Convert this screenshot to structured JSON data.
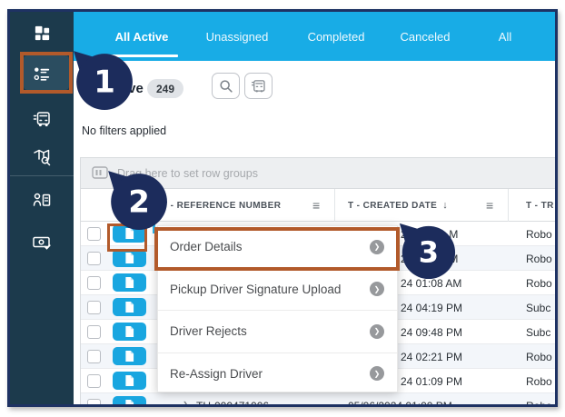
{
  "window": {
    "border_color": "#1e3263"
  },
  "sidebar": {
    "bg": "#1c3a4c",
    "items": [
      {
        "name": "dashboard",
        "selected": false
      },
      {
        "name": "orders",
        "selected": true
      },
      {
        "name": "fleet",
        "selected": false
      },
      {
        "name": "map-search",
        "selected": false
      },
      {
        "name": "drivers",
        "selected": false
      },
      {
        "name": "settlements",
        "selected": false
      }
    ]
  },
  "topbar": {
    "bg": "#18ace6",
    "tabs": [
      "All Active",
      "Unassigned",
      "Completed",
      "Canceled",
      "All"
    ],
    "active_tab": "All Active"
  },
  "toolbar": {
    "title": "All Active",
    "count": "249",
    "buttons": [
      {
        "name": "search"
      },
      {
        "name": "fleet-filter"
      }
    ]
  },
  "filters_note": "No filters applied",
  "grid": {
    "group_hint": "Drag here to set row groups",
    "columns": [
      {
        "label": "T - REFERENCE NUMBER",
        "menu_icon": "≡"
      },
      {
        "label": "T - CREATED DATE",
        "sort_icon": "↓",
        "menu_icon": "≡"
      },
      {
        "label": "T - TR"
      }
    ],
    "rows": [
      {
        "ref": "",
        "date": "24            M",
        "trip": "Robo",
        "date_covered": true,
        "expandable": false
      },
      {
        "ref": "",
        "date": "24            M",
        "trip": "Robo",
        "date_covered": true,
        "expandable": false
      },
      {
        "ref": "",
        "date": "24 01:08 AM",
        "trip": "Robo",
        "date_covered": true,
        "expandable": false
      },
      {
        "ref": "",
        "date": "24 04:19 PM",
        "trip": "Subc",
        "date_covered": true,
        "expandable": false
      },
      {
        "ref": "",
        "date": "24 09:48 PM",
        "trip": "Subc",
        "date_covered": true,
        "expandable": false
      },
      {
        "ref": "",
        "date": "24 02:21 PM",
        "trip": "Robo",
        "date_covered": true,
        "expandable": false
      },
      {
        "ref": "",
        "date": "24 01:09 PM",
        "trip": "Robo",
        "date_covered": true,
        "expandable": false
      },
      {
        "ref": "TH-000471006",
        "date": "05/06/2024 01:00 PM",
        "trip": "Robo",
        "date_covered": false,
        "expandable": true
      }
    ]
  },
  "context_menu": {
    "items": [
      {
        "label": "Order Details",
        "highlighted": true
      },
      {
        "label": "Pickup Driver Signature Upload",
        "highlighted": false
      },
      {
        "label": "Driver Rejects",
        "highlighted": false
      },
      {
        "label": "Re-Assign Driver",
        "highlighted": false
      }
    ]
  },
  "annotations": {
    "highlight_color": "#b25a2b",
    "badge_color": "#1c2c5c",
    "steps": [
      {
        "number": "1",
        "points_at": "orders-sidebar-item"
      },
      {
        "number": "2",
        "points_at": "row-file-button"
      },
      {
        "number": "3",
        "points_at": "order-details-menu-item"
      }
    ]
  }
}
